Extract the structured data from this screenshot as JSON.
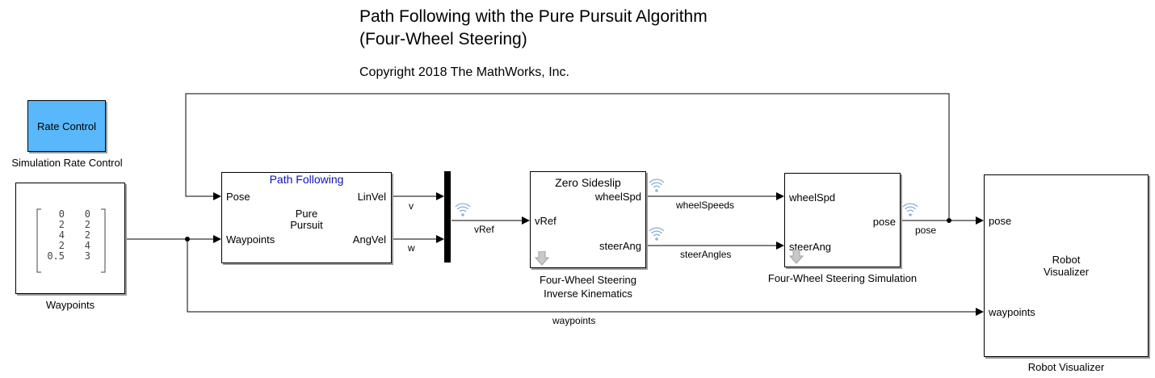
{
  "title": {
    "line1": "Path Following with the Pure Pursuit Algorithm",
    "line2": "(Four-Wheel Steering)"
  },
  "copyright": "Copyright 2018 The MathWorks, Inc.",
  "colors": {
    "rate_control_fill": "#59b8fb",
    "path_following_text": "#1010b8",
    "signal_icon": "#8fb4d6"
  },
  "blocks": {
    "rate_control": {
      "text": "Rate Control",
      "caption": "Simulation Rate Control"
    },
    "waypoints": {
      "caption": "Waypoints",
      "matrix_rows": [
        [
          "0",
          "0"
        ],
        [
          "2",
          "2"
        ],
        [
          "4",
          "2"
        ],
        [
          "2",
          "4"
        ],
        [
          "0.5",
          "3"
        ]
      ]
    },
    "pure_pursuit": {
      "header": "Path Following",
      "center_line1": "Pure",
      "center_line2": "Pursuit",
      "in_pose": "Pose",
      "in_waypoints": "Waypoints",
      "out_linvel": "LinVel",
      "out_angvel": "AngVel"
    },
    "inverse_kinematics": {
      "header": "Zero Sideslip",
      "in_vref": "vRef",
      "out_wheelspd": "wheelSpd",
      "out_steerang": "steerAng",
      "caption_line1": "Four-Wheel Steering",
      "caption_line2": "Inverse Kinematics"
    },
    "simulation": {
      "in_wheelspd": "wheelSpd",
      "in_steerang": "steerAng",
      "out_pose": "pose",
      "caption": "Four-Wheel Steering Simulation"
    },
    "robot_visualizer": {
      "center_line1": "Robot",
      "center_line2": "Visualizer",
      "in_pose": "pose",
      "in_waypoints": "waypoints",
      "caption": "Robot Visualizer"
    }
  },
  "signals": {
    "v": "v",
    "w": "w",
    "vref": "vRef",
    "wheel_speeds": "wheelSpeeds",
    "steer_angles": "steerAngles",
    "pose": "pose",
    "waypoints": "waypoints"
  }
}
